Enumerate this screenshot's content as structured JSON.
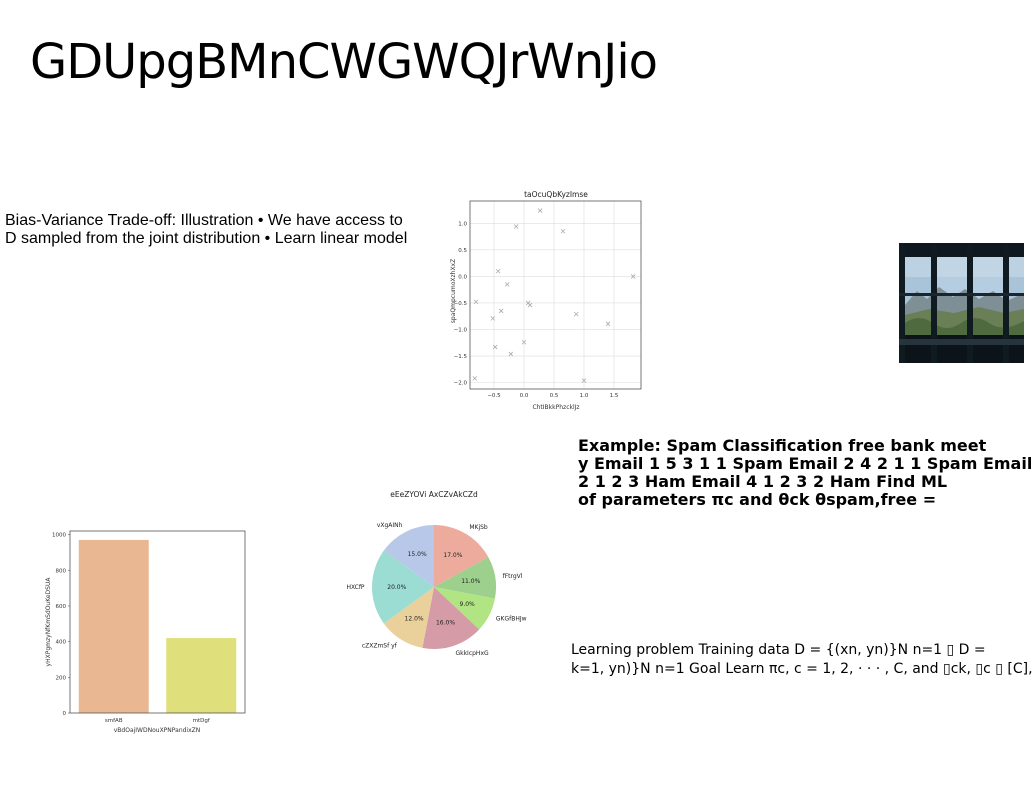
{
  "slide": {
    "title": "GDUpgBMnCWGWQJrWnJio",
    "text_blocks": {
      "bias_variance": [
        "Bias-Variance Trade-off: Illustration • We have access to",
        "D sampled from the joint distribution • Learn linear model"
      ],
      "spam_example": [
        "Example: Spam Classification free bank meet",
        "y Email 1 5 3 1 1 Spam Email 2 4 2 1 1 Spam Email",
        "2 1 2 3 Ham Email 4 1 2 3 2 Ham Find ML",
        "of parameters πc and θck θspam,free ="
      ],
      "learning_problem": [
        "Learning problem Training data D = {(xn, yn)}N n=1 ▯ D =",
        "k=1, yn)}N n=1 Goal Learn πc, c = 1, 2, · · · , C, and ▯ck, ▯c ▯ [C],"
      ]
    },
    "photo": {
      "icon": "window-landscape-photo"
    }
  },
  "chart_data": [
    {
      "type": "scatter",
      "title": "taOcuQbKyzImse",
      "xlabel": "ChtIBkkPhzcklJz",
      "ylabel": "spaQmpcumoXzhXxZ",
      "xlim": [
        -0.9,
        1.95
      ],
      "ylim": [
        -2.12,
        1.42
      ],
      "xticks": [
        -0.5,
        0.0,
        0.5,
        1.0,
        1.5
      ],
      "yticks": [
        -2.0,
        -1.5,
        -1.0,
        -0.5,
        0.0,
        0.5,
        1.0
      ],
      "xtick_labels": [
        "−0.5",
        "0.0",
        "0.5",
        "1.0",
        "1.5"
      ],
      "ytick_labels": [
        "−2.0",
        "−1.5",
        "−1.0",
        "−0.5",
        "0.0",
        "0.5",
        "1.0"
      ],
      "grid": true,
      "marker": "x",
      "color": "#aaaaaa",
      "points": [
        {
          "x": -0.82,
          "y": -1.92
        },
        {
          "x": -0.8,
          "y": -0.48
        },
        {
          "x": -0.52,
          "y": -0.79
        },
        {
          "x": -0.48,
          "y": -1.33
        },
        {
          "x": -0.43,
          "y": 0.1
        },
        {
          "x": -0.38,
          "y": -0.65
        },
        {
          "x": -0.28,
          "y": -0.15
        },
        {
          "x": -0.22,
          "y": -1.46
        },
        {
          "x": -0.13,
          "y": 0.94
        },
        {
          "x": 0.0,
          "y": -1.24
        },
        {
          "x": 0.07,
          "y": -0.5
        },
        {
          "x": 0.1,
          "y": -0.54
        },
        {
          "x": 0.27,
          "y": 1.24
        },
        {
          "x": 0.65,
          "y": 0.85
        },
        {
          "x": 0.87,
          "y": -0.71
        },
        {
          "x": 1.0,
          "y": -1.96
        },
        {
          "x": 1.4,
          "y": -0.89
        },
        {
          "x": 1.82,
          "y": 0.0
        }
      ]
    },
    {
      "type": "bar",
      "xlabel": "vBdOajIWDNouXPNPandixZN",
      "ylabel": "yHXPgmzyNfKmSdOuKeDSUA",
      "ylim": [
        0,
        1020
      ],
      "yticks": [
        0,
        200,
        400,
        600,
        800,
        1000
      ],
      "categories": [
        "smfAB",
        "mtDgf"
      ],
      "values": [
        970,
        420
      ],
      "colors": [
        "#e9b892",
        "#dfe07c"
      ]
    },
    {
      "type": "pie",
      "title": "eEeZYOVi AxCZvAkCZd",
      "slices": [
        {
          "label": "MKjSb",
          "value": 17.0,
          "pct_label": "17.0%",
          "color": "#ecab9d"
        },
        {
          "label": "fFtrgVl",
          "value": 11.0,
          "pct_label": "11.0%",
          "color": "#9dcf8d"
        },
        {
          "label": "GKGfBHJw",
          "value": 9.0,
          "pct_label": "9.0%",
          "color": "#b1e583"
        },
        {
          "label": "GkkIcpHxG",
          "value": 16.0,
          "pct_label": "16.0%",
          "color": "#d59ca8"
        },
        {
          "label": "cZXZmSf yf",
          "value": 12.0,
          "pct_label": "12.0%",
          "color": "#ead19c"
        },
        {
          "label": "HXCfP",
          "value": 20.0,
          "pct_label": "20.0%",
          "color": "#9bdcd3"
        },
        {
          "label": "vXgAINh",
          "value": 15.0,
          "pct_label": "15.0%",
          "color": "#b8c8e9"
        }
      ]
    }
  ]
}
